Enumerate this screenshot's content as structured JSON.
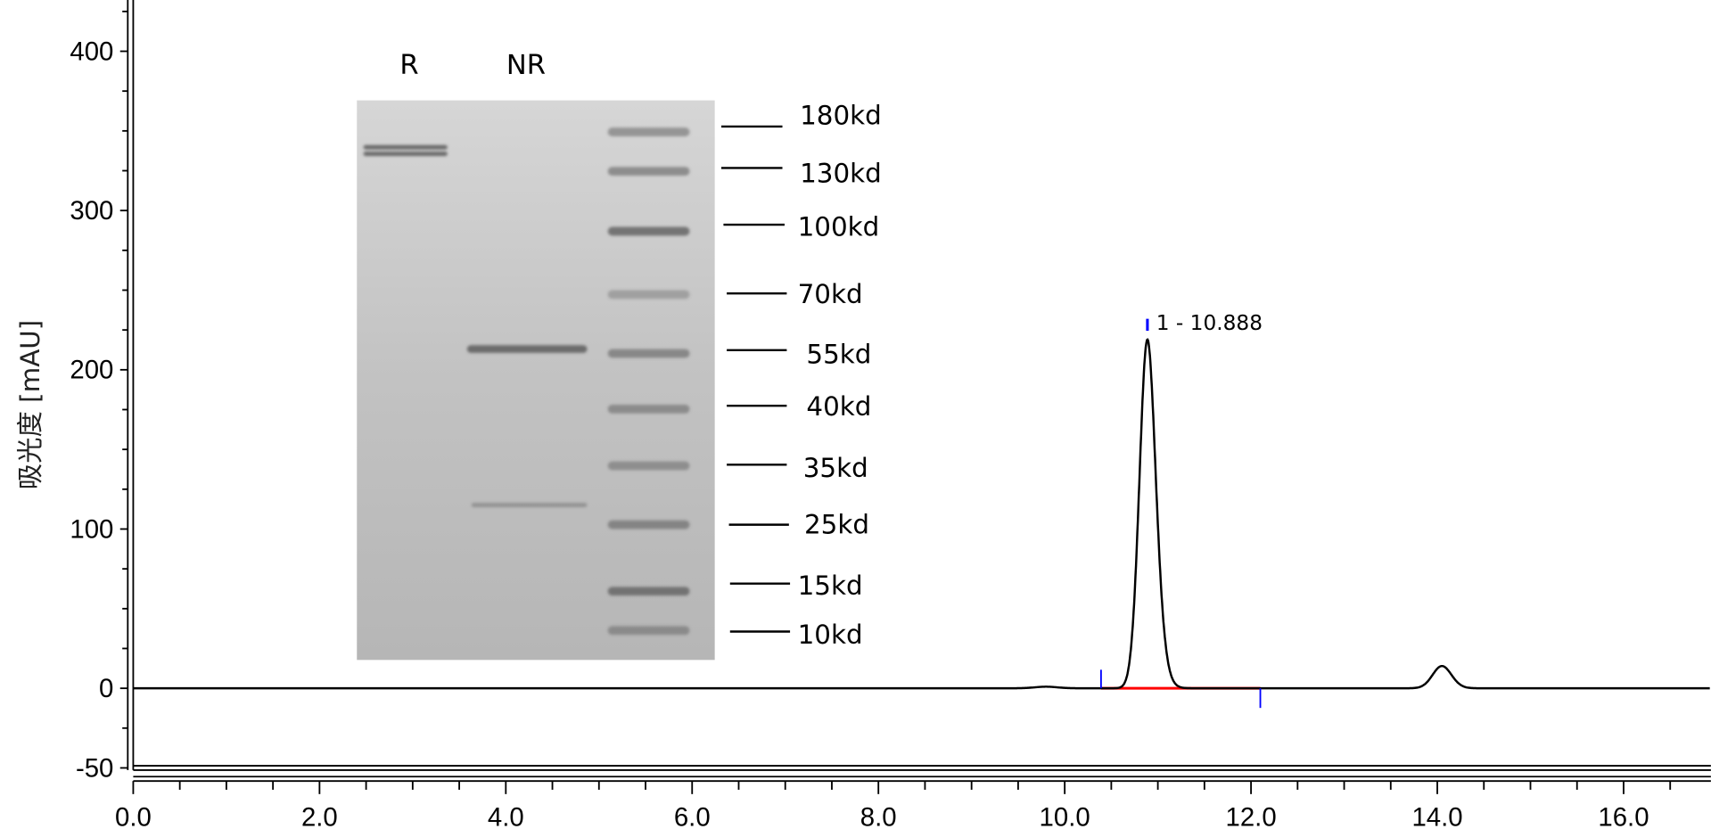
{
  "chart_data": {
    "type": "line",
    "title": "",
    "xlabel": "",
    "ylabel": "吸光度 [mAU]",
    "xlim": [
      0.0,
      16.93
    ],
    "ylim": [
      -50,
      435
    ],
    "x_ticks": [
      "0.0",
      "2.0",
      "4.0",
      "6.0",
      "8.0",
      "10.0",
      "12.0",
      "14.0",
      "16.0"
    ],
    "y_ticks": [
      "400",
      "300",
      "200",
      "100",
      "0",
      "-50"
    ],
    "grid": false,
    "line_color": "#000000",
    "baseline_color": "#ff0000",
    "marker_color": "#0000ff",
    "peaks": [
      {
        "rt": 9.8,
        "height": 1,
        "sigma": 0.12,
        "tail": 0
      },
      {
        "rt": 10.888,
        "height": 219,
        "sigma": 0.085,
        "tail": 0.16
      },
      {
        "rt": 14.05,
        "height": 14,
        "sigma": 0.1,
        "tail": 0.05
      }
    ],
    "annotations": [
      {
        "label": "1 - 10.888",
        "x": 10.888,
        "y": 219
      }
    ],
    "integration": {
      "start": 10.39,
      "end": 12.1
    }
  },
  "gel_inset": {
    "lane_labels": [
      "R",
      "NR"
    ],
    "marker_labels": [
      "180kd",
      "130kd",
      "100kd",
      "70kd",
      "55kd",
      "40kd",
      "35kd",
      "25kd",
      "15kd",
      "10kd"
    ],
    "background_color": "#c0c0c0",
    "band_color": "#555555"
  }
}
